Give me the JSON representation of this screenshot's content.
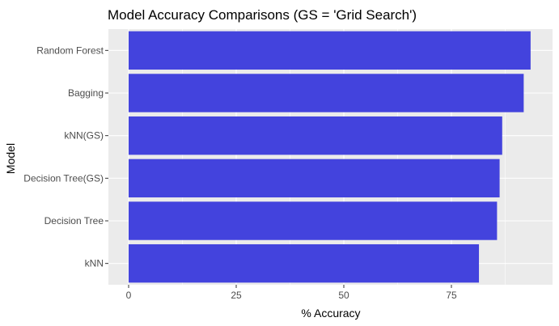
{
  "chart_data": {
    "type": "bar",
    "orientation": "horizontal",
    "title": "Model Accuracy Comparisons (GS = 'Grid Search')",
    "xlabel": "% Accuracy",
    "ylabel": "Model",
    "categories": [
      "Random Forest",
      "Bagging",
      "kNN(GS)",
      "Decision Tree(GS)",
      "Decision Tree",
      "kNN"
    ],
    "values": [
      93.4,
      91.8,
      86.8,
      86.2,
      85.6,
      81.4
    ],
    "xlim": [
      0,
      100
    ],
    "xticks": [
      0,
      25,
      50,
      75
    ],
    "xtick_labels": [
      "0",
      "25",
      "50",
      "75"
    ],
    "grid": true,
    "colors": {
      "bar": "#4343dd",
      "panel_background": "#ebebeb",
      "grid_major": "#ffffff",
      "tick_text": "#4d4d4d",
      "tick_mark": "#333333"
    }
  }
}
